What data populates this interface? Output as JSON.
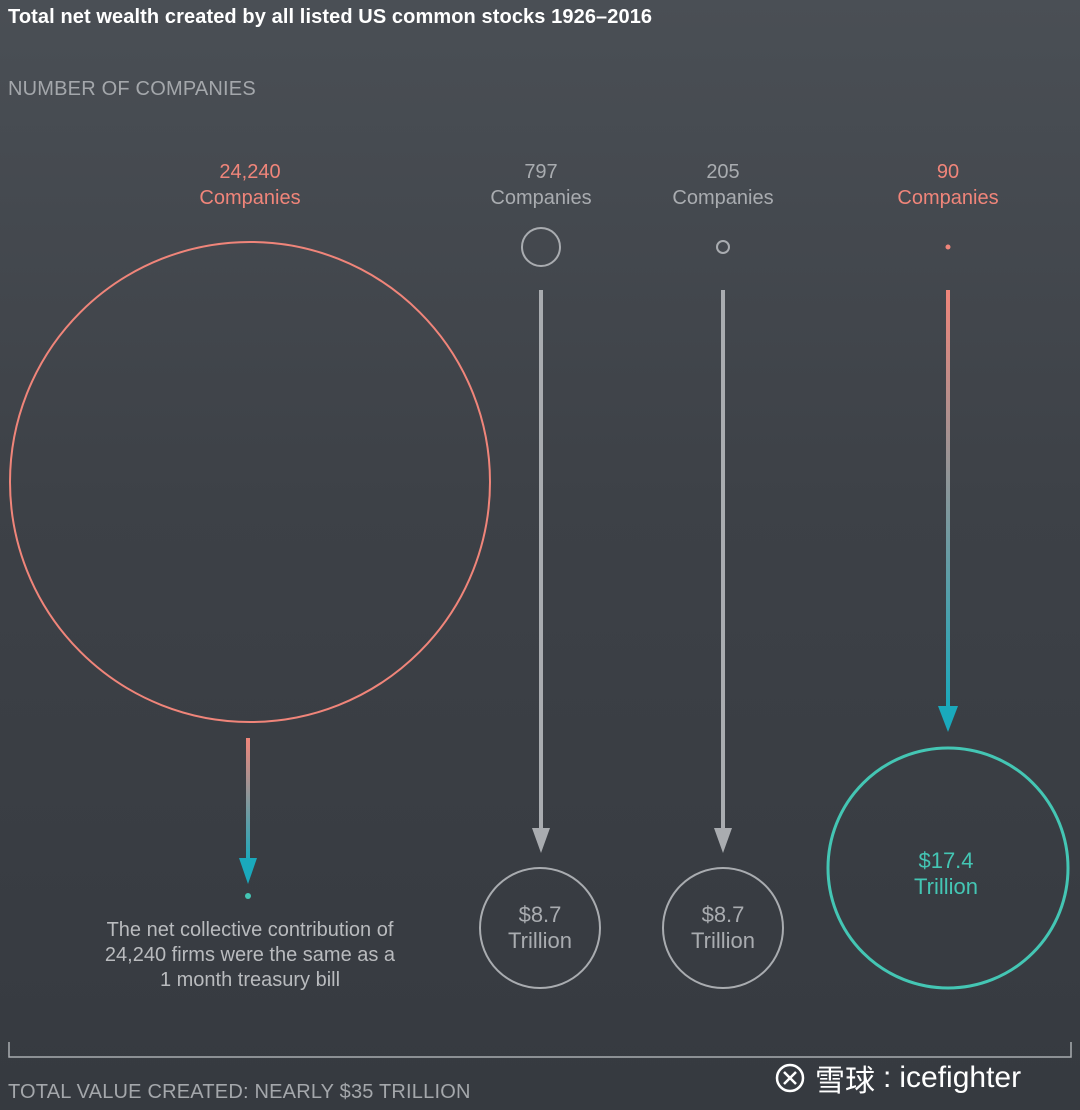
{
  "title": "Total net wealth created by all listed US common stocks 1926–2016",
  "top_label": "NUMBER OF COMPANIES",
  "bottom_label": "TOTAL VALUE CREATED: NEARLY $35 TRILLION",
  "watermark": {
    "brand": "雪球",
    "separator": ":",
    "user": "icefighter"
  },
  "note": [
    "The net collective contribution of",
    "24,240 firms were the same as a",
    "1 month treasury bill"
  ],
  "colors": {
    "accent_salmon": "#f0857a",
    "accent_teal": "#44c6b4",
    "arrow_teal": "#1aa9bc",
    "neutral": "#a9acb0"
  },
  "chart_data": {
    "type": "bubble-flow",
    "title": "Total net wealth created by all listed US common stocks 1926–2016",
    "groups": [
      {
        "companies": 24240,
        "companies_label": "24,240",
        "unit_label": "Companies",
        "value_label": "",
        "value_line2": "",
        "highlight": true
      },
      {
        "companies": 797,
        "companies_label": "797",
        "unit_label": "Companies",
        "value": 8.7,
        "value_label": "$8.7",
        "value_line2": "Trillion",
        "highlight": false
      },
      {
        "companies": 205,
        "companies_label": "205",
        "unit_label": "Companies",
        "value": 8.7,
        "value_label": "$8.7",
        "value_line2": "Trillion",
        "highlight": false
      },
      {
        "companies": 90,
        "companies_label": "90",
        "unit_label": "Companies",
        "value": 17.4,
        "value_label": "$17.4",
        "value_line2": "Trillion",
        "highlight": true
      }
    ],
    "total_label": "TOTAL VALUE CREATED: NEARLY $35 TRILLION"
  }
}
